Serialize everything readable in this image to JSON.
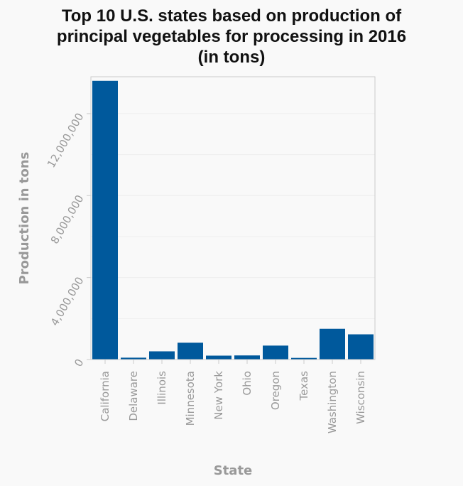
{
  "chart_data": {
    "type": "bar",
    "title": [
      "Top 10 U.S. states based on production of",
      "principal vegetables for processing in 2016",
      "(in tons)"
    ],
    "xlabel": "State",
    "ylabel": "Production in tons",
    "categories": [
      "California",
      "Delaware",
      "Illinois",
      "Minnesota",
      "New York",
      "Ohio",
      "Oregon",
      "Texas",
      "Washington",
      "Wisconsin"
    ],
    "values": [
      13600000,
      90000,
      400000,
      820000,
      190000,
      200000,
      680000,
      80000,
      1500000,
      1230000
    ],
    "ylim": [
      0,
      13800000
    ],
    "yticks": [
      0,
      4000000,
      8000000,
      12000000
    ],
    "ytick_labels": [
      "0",
      "4,000,000",
      "8,000,000",
      "12,000,000"
    ],
    "grid": true,
    "colors": {
      "bar": "#00599c",
      "grid": "#eeeeee",
      "axis": "#cccccc",
      "text": "#999999"
    }
  }
}
